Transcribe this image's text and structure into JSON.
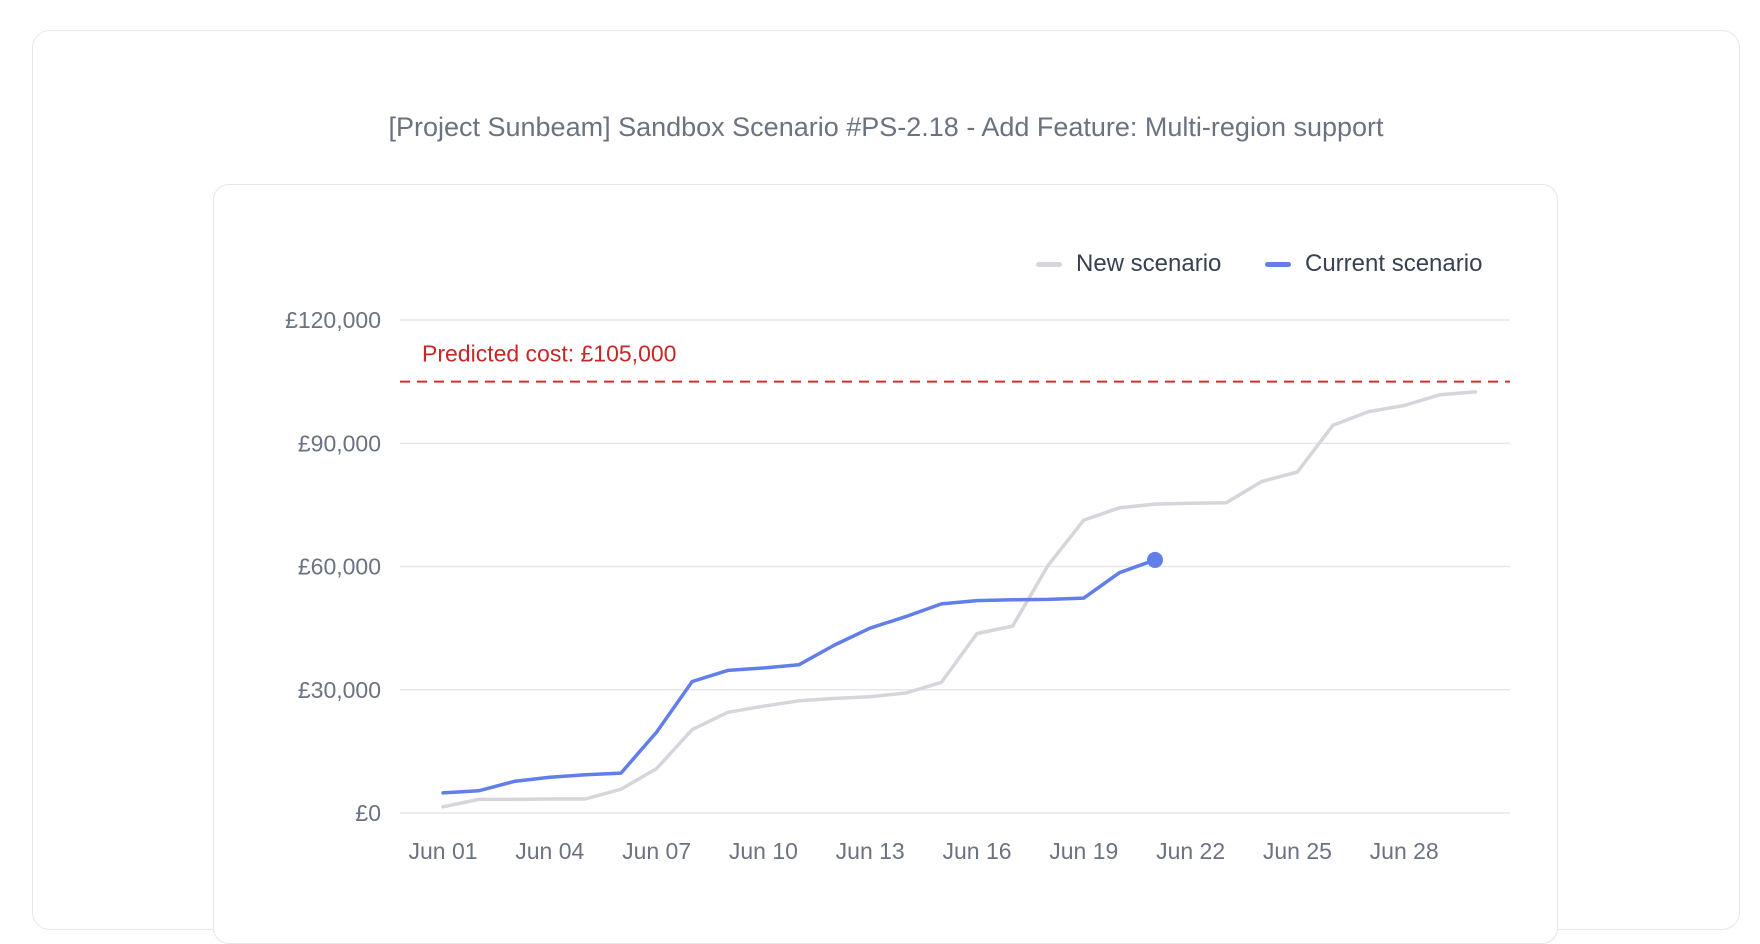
{
  "page": {
    "title": "[Project Sunbeam] Sandbox Scenario #PS-2.18 - Add Feature: Multi-region support"
  },
  "colors": {
    "new_scenario": "#d4d6db",
    "current_scenario": "#627ee8",
    "threshold": "#d32f2f",
    "grid": "#e5e7eb",
    "tick_text": "#6b7280"
  },
  "legend": {
    "items": [
      {
        "label": "New scenario",
        "color": "#d4d6db"
      },
      {
        "label": "Current scenario",
        "color": "#627ee8"
      }
    ],
    "placement": "top-right"
  },
  "chart_data": {
    "type": "line",
    "title": "",
    "xlabel": "",
    "ylabel": "",
    "x": [
      "Jun 01",
      "Jun 02",
      "Jun 03",
      "Jun 04",
      "Jun 05",
      "Jun 06",
      "Jun 07",
      "Jun 08",
      "Jun 09",
      "Jun 10",
      "Jun 11",
      "Jun 12",
      "Jun 13",
      "Jun 14",
      "Jun 15",
      "Jun 16",
      "Jun 17",
      "Jun 18",
      "Jun 19",
      "Jun 20",
      "Jun 21",
      "Jun 22",
      "Jun 23",
      "Jun 24",
      "Jun 25",
      "Jun 26",
      "Jun 27",
      "Jun 28",
      "Jun 29",
      "Jun 30"
    ],
    "x_tick_labels": [
      "Jun 01",
      "Jun 04",
      "Jun 07",
      "Jun 10",
      "Jun 13",
      "Jun 16",
      "Jun 19",
      "Jun 22",
      "Jun 25",
      "Jun 28"
    ],
    "ylim": [
      0,
      120000
    ],
    "y_ticks": [
      0,
      30000,
      60000,
      90000,
      120000
    ],
    "y_tick_labels": [
      "£0",
      "£30,000",
      "£60,000",
      "£90,000",
      "£120,000"
    ],
    "grid": true,
    "series": [
      {
        "name": "New scenario",
        "color": "#d4d6db",
        "values": [
          1500,
          3300,
          3300,
          3400,
          3400,
          5800,
          10800,
          20300,
          24500,
          26000,
          27300,
          27900,
          28300,
          29200,
          31800,
          43700,
          45500,
          60300,
          71300,
          74300,
          75200,
          75400,
          75500,
          80700,
          83000,
          94400,
          97700,
          99200,
          101800,
          102500
        ]
      },
      {
        "name": "Current scenario",
        "color": "#627ee8",
        "values": [
          4900,
          5400,
          7700,
          8700,
          9300,
          9700,
          19700,
          32000,
          34700,
          35300,
          36100,
          40900,
          45000,
          47800,
          50900,
          51700,
          51900,
          52000,
          52300,
          58500,
          61600,
          null,
          null,
          null,
          null,
          null,
          null,
          null,
          null,
          null
        ],
        "end_marker": true
      }
    ],
    "annotations": [
      {
        "type": "hline",
        "y": 105000,
        "label": "Predicted cost: £105,000",
        "style": "dashed",
        "color": "#d32f2f"
      }
    ]
  }
}
